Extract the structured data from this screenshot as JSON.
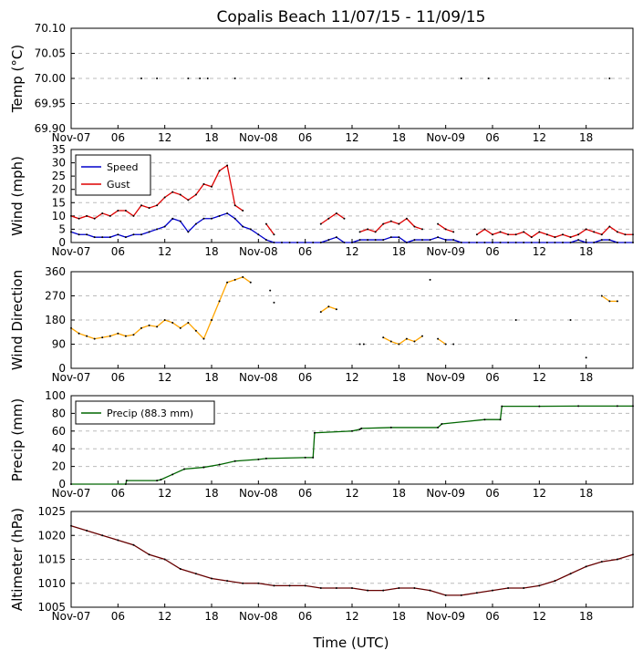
{
  "title": "Copalis Beach 11/07/15 - 11/09/15",
  "xlabel": "Time (UTC)",
  "x_tick_labels": [
    "Nov-07",
    "06",
    "12",
    "18",
    "Nov-08",
    "06",
    "12",
    "18",
    "Nov-09",
    "06",
    "12",
    "18"
  ],
  "x_range_hours": [
    0,
    72
  ],
  "chart_data": [
    {
      "type": "scatter",
      "name": "temp",
      "ylabel": "Temp (°C)",
      "ylim": [
        69.9,
        70.1
      ],
      "yticks": [
        "69.90",
        "69.95",
        "70.00",
        "70.05",
        "70.10"
      ],
      "ytick_values": [
        69.9,
        69.95,
        70.0,
        70.05,
        70.1
      ],
      "x": [
        9,
        11,
        15,
        16.5,
        17.5,
        21,
        50,
        53.5,
        69
      ],
      "values": [
        70.0,
        70.0,
        70.0,
        70.0,
        70.0,
        70.0,
        70.0,
        70.0,
        70.0
      ]
    },
    {
      "type": "line",
      "name": "wind",
      "ylabel": "Wind (mph)",
      "ylim": [
        0,
        35
      ],
      "yticks": [
        "0",
        "5",
        "10",
        "15",
        "20",
        "25",
        "30",
        "35"
      ],
      "ytick_values": [
        0,
        5,
        10,
        15,
        20,
        25,
        30,
        35
      ],
      "legend": [
        "Speed",
        "Gust"
      ],
      "series": [
        {
          "name": "Speed",
          "color": "#0000cc",
          "x": [
            0,
            1,
            2,
            3,
            4,
            5,
            6,
            7,
            8,
            9,
            10,
            11,
            12,
            13,
            14,
            15,
            16,
            17,
            18,
            19,
            20,
            21,
            22,
            23,
            24,
            25,
            26,
            27,
            28,
            29,
            30,
            31,
            32,
            33,
            34,
            35,
            36,
            37,
            38,
            39,
            40,
            41,
            42,
            43,
            44,
            45,
            46,
            47,
            48,
            49,
            50,
            51,
            52,
            53,
            54,
            55,
            56,
            57,
            58,
            59,
            60,
            61,
            62,
            63,
            64,
            65,
            66,
            67,
            68,
            69,
            70,
            71,
            72
          ],
          "values": [
            4,
            3,
            3,
            2,
            2,
            2,
            3,
            2,
            3,
            3,
            4,
            5,
            6,
            9,
            8,
            4,
            7,
            9,
            9,
            10,
            11,
            9,
            6,
            5,
            3,
            1,
            0,
            0,
            0,
            0,
            0,
            0,
            0,
            1,
            2,
            0,
            0,
            1,
            1,
            1,
            1,
            2,
            2,
            0,
            1,
            1,
            1,
            2,
            1,
            1,
            0,
            0,
            0,
            0,
            0,
            0,
            0,
            0,
            0,
            0,
            0,
            0,
            0,
            0,
            0,
            1,
            0,
            0,
            1,
            1,
            0,
            0,
            0
          ]
        },
        {
          "name": "Gust",
          "color": "#dd0000",
          "x": [
            0,
            1,
            2,
            3,
            4,
            5,
            6,
            7,
            8,
            9,
            10,
            11,
            12,
            13,
            14,
            15,
            16,
            17,
            18,
            19,
            20,
            21,
            22,
            null,
            25,
            26,
            null,
            32,
            33,
            34,
            35,
            null,
            37,
            38,
            39,
            40,
            41,
            42,
            43,
            44,
            45,
            null,
            47,
            48,
            49,
            null,
            52,
            53,
            54,
            55,
            56,
            57,
            58,
            59,
            60,
            61,
            62,
            63,
            64,
            65,
            66,
            67,
            68,
            69,
            70,
            71,
            72
          ],
          "values": [
            10,
            9,
            10,
            9,
            11,
            10,
            12,
            12,
            10,
            14,
            13,
            14,
            17,
            19,
            18,
            16,
            18,
            22,
            21,
            27,
            29,
            14,
            12,
            null,
            7,
            3,
            null,
            7,
            9,
            11,
            9,
            null,
            4,
            5,
            4,
            7,
            8,
            7,
            9,
            6,
            5,
            null,
            7,
            5,
            4,
            null,
            3,
            5,
            3,
            4,
            3,
            3,
            4,
            2,
            4,
            3,
            2,
            3,
            2,
            3,
            5,
            4,
            3,
            6,
            4,
            3,
            3
          ]
        }
      ]
    },
    {
      "type": "line",
      "name": "direction",
      "ylabel": "Wind Direction",
      "ylim": [
        0,
        360
      ],
      "yticks": [
        "0",
        "90",
        "180",
        "270",
        "360"
      ],
      "ytick_values": [
        0,
        90,
        180,
        270,
        360
      ],
      "series": [
        {
          "name": "Direction",
          "color": "#ffa500",
          "x": [
            0,
            1,
            2,
            3,
            4,
            5,
            6,
            7,
            8,
            9,
            10,
            11,
            12,
            13,
            14,
            15,
            16,
            17,
            18,
            19,
            20,
            21,
            22,
            23,
            null,
            32,
            33,
            34,
            null,
            40,
            41,
            42,
            43,
            44,
            45,
            null,
            47,
            48,
            null,
            68,
            69,
            70
          ],
          "values": [
            150,
            130,
            120,
            110,
            115,
            120,
            130,
            120,
            125,
            150,
            160,
            155,
            180,
            170,
            150,
            170,
            140,
            110,
            180,
            250,
            320,
            330,
            340,
            320,
            null,
            210,
            230,
            220,
            null,
            115,
            100,
            90,
            110,
            100,
            120,
            null,
            110,
            90,
            null,
            270,
            250,
            250
          ]
        }
      ],
      "scatter_x": [
        25.5,
        26,
        37,
        37.5,
        46,
        49,
        57,
        64,
        66
      ],
      "scatter_values": [
        290,
        245,
        90,
        90,
        330,
        90,
        180,
        180,
        40
      ]
    },
    {
      "type": "line",
      "name": "precip",
      "ylabel": "Precip (mm)",
      "ylim": [
        0,
        100
      ],
      "yticks": [
        "0",
        "20",
        "40",
        "60",
        "80",
        "100"
      ],
      "ytick_values": [
        0,
        20,
        40,
        60,
        80,
        100
      ],
      "legend": [
        "Precip (88.3 mm)"
      ],
      "series": [
        {
          "name": "Precip (88.3 mm)",
          "color": "#006600",
          "x": [
            0,
            7,
            7.1,
            11,
            11.5,
            13,
            14.5,
            17,
            19,
            21,
            24,
            25,
            30,
            31,
            31.2,
            36,
            37,
            37.2,
            41,
            47,
            47.5,
            53,
            55,
            55.2,
            60,
            65,
            70,
            72
          ],
          "values": [
            0,
            0,
            4,
            4,
            5,
            11,
            17,
            19,
            22,
            26,
            28,
            29,
            30,
            30,
            58,
            60,
            62,
            63,
            64,
            64,
            68,
            73,
            73,
            88,
            88,
            88.3,
            88.3,
            88.3
          ]
        }
      ]
    },
    {
      "type": "line",
      "name": "altimeter",
      "ylabel": "Altimeter (hPa)",
      "ylim": [
        1005,
        1025
      ],
      "yticks": [
        "1005",
        "1010",
        "1015",
        "1020",
        "1025"
      ],
      "ytick_values": [
        1005,
        1010,
        1015,
        1020,
        1025
      ],
      "series": [
        {
          "name": "Altimeter",
          "color": "#660000",
          "x": [
            0,
            2,
            4,
            6,
            8,
            10,
            12,
            14,
            16,
            18,
            20,
            22,
            24,
            26,
            28,
            30,
            32,
            34,
            36,
            38,
            40,
            42,
            44,
            46,
            48,
            50,
            52,
            54,
            56,
            58,
            60,
            62,
            64,
            66,
            68,
            70,
            72
          ],
          "values": [
            1022,
            1021,
            1020,
            1019,
            1018,
            1016,
            1015,
            1013,
            1012,
            1011,
            1010.5,
            1010,
            1010,
            1009.5,
            1009.5,
            1009.5,
            1009,
            1009,
            1009,
            1008.5,
            1008.5,
            1009,
            1009,
            1008.5,
            1007.5,
            1007.5,
            1008,
            1008.5,
            1009,
            1009,
            1009.5,
            1010.5,
            1012,
            1013.5,
            1014.5,
            1015,
            1016
          ]
        }
      ]
    }
  ]
}
